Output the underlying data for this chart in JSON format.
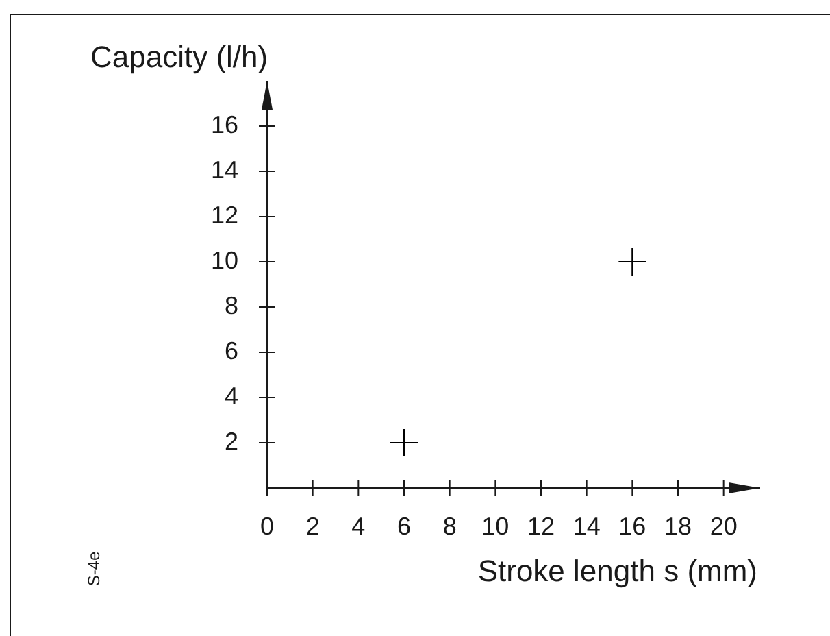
{
  "chart_data": {
    "type": "scatter",
    "xlabel": "Stroke length s (mm)",
    "ylabel": "Capacity (l/h)",
    "annotations": [
      "S-4e"
    ],
    "x": [
      6,
      16
    ],
    "values": [
      2,
      10
    ],
    "color": "#000000",
    "marker": "cross",
    "legend": false,
    "xlim": [
      0,
      21.6
    ],
    "ylim": [
      0,
      18
    ],
    "xticks": [
      0,
      2,
      4,
      6,
      8,
      10,
      12,
      14,
      16,
      18,
      20
    ],
    "yticks": [
      2,
      4,
      6,
      8,
      10,
      12,
      14,
      16
    ]
  }
}
